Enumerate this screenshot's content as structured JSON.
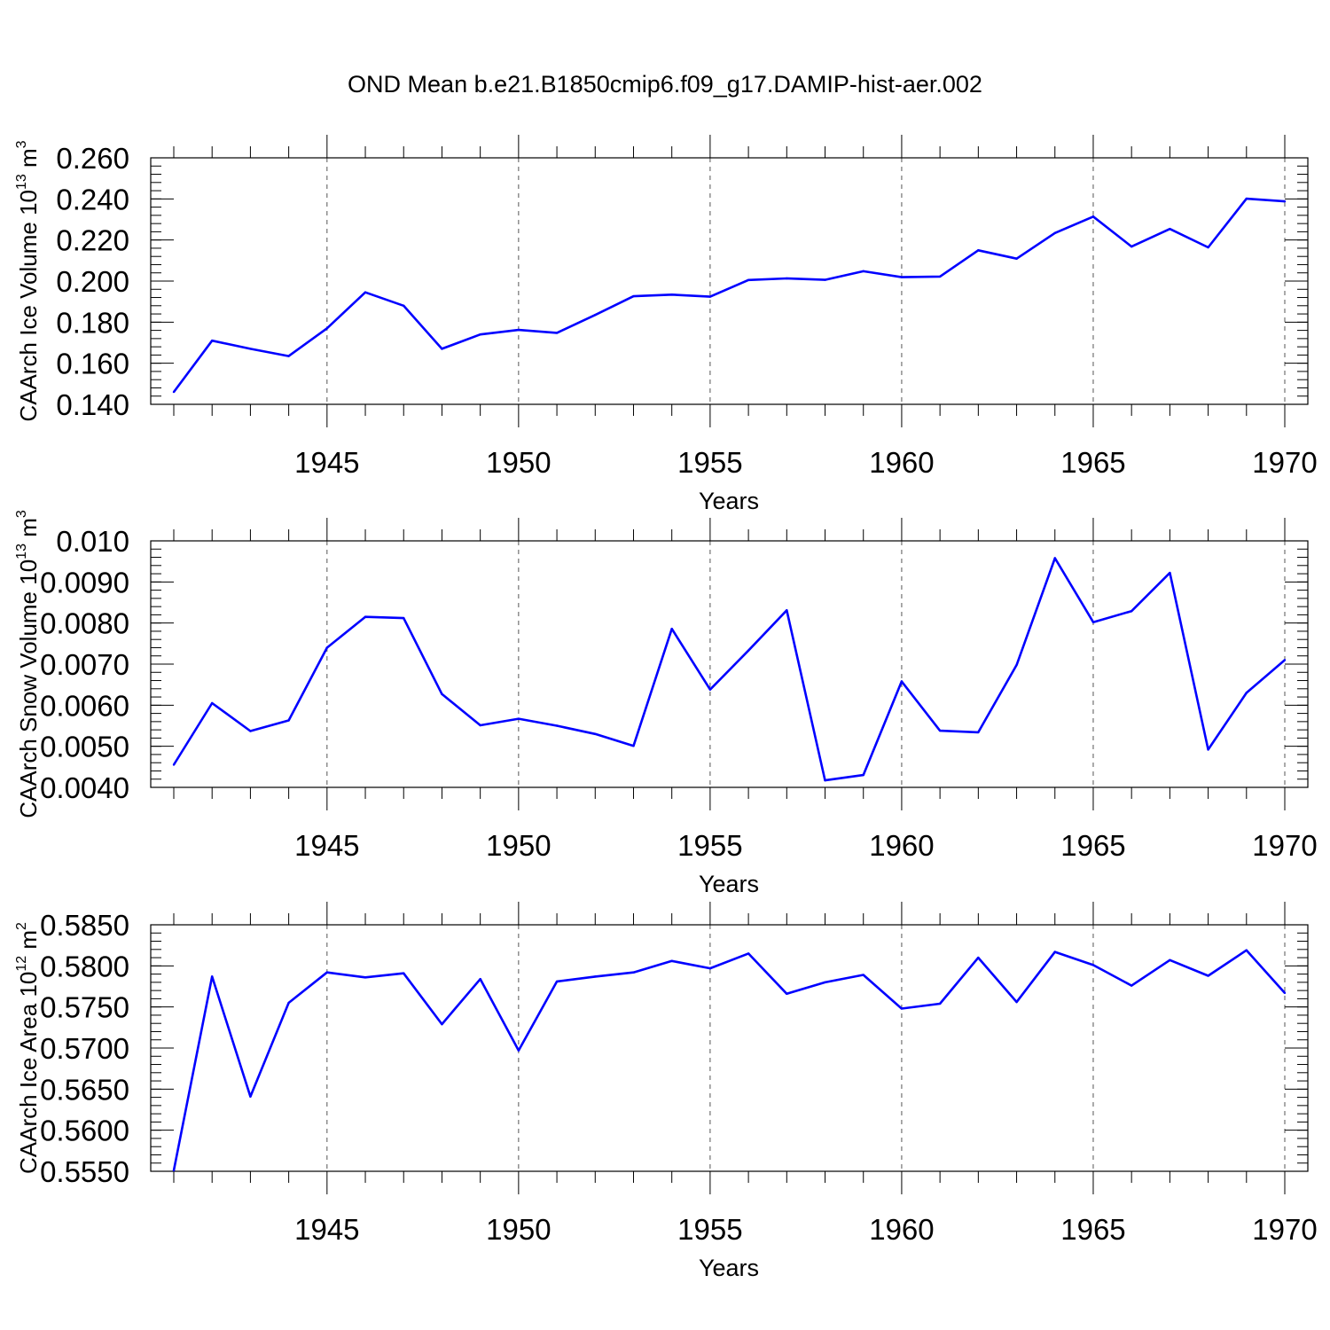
{
  "title": "OND Mean b.e21.B1850cmip6.f09_g17.DAMIP-hist-aer.002",
  "line_color": "#0000ff",
  "chart_data": [
    {
      "type": "line",
      "title": "OND Mean b.e21.B1850cmip6.f09_g17.DAMIP-hist-aer.002",
      "xlabel": "Years",
      "ylabel": "CAArch Ice Volume 10",
      "ylabel_exponent": "13",
      "ylabel_unit": "m",
      "ylabel_unit_exponent": "3",
      "xlim": [
        1941,
        1970
      ],
      "ylim": [
        0.14,
        0.26
      ],
      "x_ticks": [
        1945,
        1950,
        1955,
        1960,
        1965,
        1970
      ],
      "x_tick_labels": [
        "1945",
        "1950",
        "1955",
        "1960",
        "1965",
        "1970"
      ],
      "y_ticks": [
        0.14,
        0.16,
        0.18,
        0.2,
        0.22,
        0.24,
        0.26
      ],
      "y_tick_labels": [
        "0.140",
        "0.160",
        "0.180",
        "0.200",
        "0.220",
        "0.240",
        "0.260"
      ],
      "y_minor_step": 0.004,
      "grid": "dashed vertical at major x ticks",
      "x": [
        1941,
        1942,
        1943,
        1944,
        1945,
        1946,
        1947,
        1948,
        1949,
        1950,
        1951,
        1952,
        1953,
        1954,
        1955,
        1956,
        1957,
        1958,
        1959,
        1960,
        1961,
        1962,
        1963,
        1964,
        1965,
        1966,
        1967,
        1968,
        1969,
        1970
      ],
      "values": [
        0.146,
        0.171,
        0.167,
        0.1635,
        0.177,
        0.1945,
        0.188,
        0.167,
        0.174,
        0.1762,
        0.1748,
        0.1835,
        0.1926,
        0.1934,
        0.1924,
        0.2005,
        0.2013,
        0.2006,
        0.2048,
        0.2019,
        0.2022,
        0.215,
        0.2109,
        0.2234,
        0.2314,
        0.2168,
        0.2254,
        0.2164,
        0.2401,
        0.2388
      ]
    },
    {
      "type": "line",
      "xlabel": "Years",
      "ylabel": "CAArch Snow Volume 10",
      "ylabel_exponent": "13",
      "ylabel_unit": "m",
      "ylabel_unit_exponent": "3",
      "xlim": [
        1941,
        1970
      ],
      "ylim": [
        0.004,
        0.01
      ],
      "x_ticks": [
        1945,
        1950,
        1955,
        1960,
        1965,
        1970
      ],
      "x_tick_labels": [
        "1945",
        "1950",
        "1955",
        "1960",
        "1965",
        "1970"
      ],
      "y_ticks": [
        0.004,
        0.005,
        0.006,
        0.007,
        0.008,
        0.009,
        0.01
      ],
      "y_tick_labels": [
        "0.0040",
        "0.0050",
        "0.0060",
        "0.0070",
        "0.0080",
        "0.0090",
        "0.010"
      ],
      "y_minor_step": 0.0002,
      "grid": "dashed vertical at major x ticks",
      "x": [
        1941,
        1942,
        1943,
        1944,
        1945,
        1946,
        1947,
        1948,
        1949,
        1950,
        1951,
        1952,
        1953,
        1954,
        1955,
        1956,
        1957,
        1958,
        1959,
        1960,
        1961,
        1962,
        1963,
        1964,
        1965,
        1966,
        1967,
        1968,
        1969,
        1970
      ],
      "values": [
        0.00455,
        0.00605,
        0.00537,
        0.00563,
        0.0074,
        0.00815,
        0.00812,
        0.00627,
        0.00551,
        0.00567,
        0.0055,
        0.0053,
        0.00501,
        0.00786,
        0.00638,
        0.00733,
        0.00831,
        0.00417,
        0.0043,
        0.00658,
        0.00538,
        0.00534,
        0.00698,
        0.00958,
        0.00802,
        0.00829,
        0.00922,
        0.00492,
        0.0063,
        0.0071
      ]
    },
    {
      "type": "line",
      "xlabel": "Years",
      "ylabel": "CAArch Ice Area 10",
      "ylabel_exponent": "12",
      "ylabel_unit": "m",
      "ylabel_unit_exponent": "2",
      "xlim": [
        1941,
        1970
      ],
      "ylim": [
        0.555,
        0.585
      ],
      "x_ticks": [
        1945,
        1950,
        1955,
        1960,
        1965,
        1970
      ],
      "x_tick_labels": [
        "1945",
        "1950",
        "1955",
        "1960",
        "1965",
        "1970"
      ],
      "y_ticks": [
        0.555,
        0.56,
        0.565,
        0.57,
        0.575,
        0.58,
        0.585
      ],
      "y_tick_labels": [
        "0.5550",
        "0.5600",
        "0.5650",
        "0.5700",
        "0.5750",
        "0.5800",
        "0.5850"
      ],
      "y_minor_step": 0.001,
      "grid": "dashed vertical at major x ticks",
      "x": [
        1941,
        1942,
        1943,
        1944,
        1945,
        1946,
        1947,
        1948,
        1949,
        1950,
        1951,
        1952,
        1953,
        1954,
        1955,
        1956,
        1957,
        1958,
        1959,
        1960,
        1961,
        1962,
        1963,
        1964,
        1965,
        1966,
        1967,
        1968,
        1969,
        1970
      ],
      "values": [
        0.5551,
        0.5787,
        0.5641,
        0.5755,
        0.5792,
        0.5786,
        0.5791,
        0.5729,
        0.5784,
        0.5697,
        0.5781,
        0.5787,
        0.5792,
        0.5806,
        0.5797,
        0.5815,
        0.5766,
        0.578,
        0.5789,
        0.5748,
        0.5754,
        0.581,
        0.5756,
        0.5817,
        0.5801,
        0.5776,
        0.5807,
        0.5788,
        0.5819,
        0.5767
      ]
    }
  ]
}
